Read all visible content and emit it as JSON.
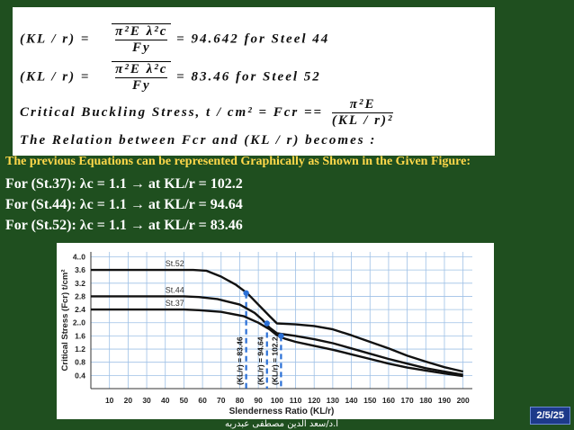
{
  "slide": {
    "intro": "The previous Equations can be represented Graphically as Shown in the Given Figure:",
    "lines": [
      "For (St.37):    λc = 1.1  → at  KL/r = 102.2",
      "For (St.44):    λc = 1.1  → at  KL/r = 94.64",
      "For (St.52):    λc = 1.1  → at  KL/r = 83.46"
    ],
    "page": "2/5/25",
    "author": "أ.د/سعد الدين مصطفى عبدربه"
  },
  "equations": {
    "eq1_lhs": "(KL / r) =",
    "eq1_num": "π²E λ²c",
    "eq1_den": "Fy",
    "eq1_rhs": "= 94.642   for   Steel   44",
    "eq2_lhs": "(KL / r) =",
    "eq2_num": "π²E λ²c",
    "eq2_den": "Fy",
    "eq2_rhs": "= 83.46   for   Steel   52",
    "eq3_lhs": "Critical   Buckling   Stress, t / cm² = Fcr ==",
    "eq3_num": "π²E",
    "eq3_den": "(KL / r)²",
    "eq4": "The   Relation   between   Fcr   and   (KL / r)   becomes :"
  },
  "chart_data": {
    "type": "line",
    "xlabel": "Slenderness Ratio  (KL/r)",
    "ylabel": "Critical Stress  (Fcr)  t/cm²",
    "x_ticks": [
      10,
      20,
      30,
      40,
      50,
      60,
      70,
      80,
      90,
      100,
      110,
      120,
      130,
      140,
      150,
      160,
      170,
      180,
      190,
      200
    ],
    "y_ticks": [
      "4..0",
      "3.6",
      "3.2",
      "2.8",
      "2.4",
      "2..0",
      "1.6",
      "1.2",
      "0.8",
      "0.4"
    ],
    "y_tick_values": [
      4.0,
      3.6,
      3.2,
      2.8,
      2.4,
      2.0,
      1.6,
      1.2,
      0.8,
      0.4
    ],
    "xlim": [
      0,
      205
    ],
    "ylim": [
      0,
      4.15
    ],
    "grid": true,
    "series": [
      {
        "name": "St.52",
        "x": [
          0,
          55,
          62,
          70,
          78,
          84,
          90,
          96,
          100,
          110,
          120,
          130,
          140,
          150,
          160,
          170,
          180,
          190,
          200
        ],
        "y": [
          3.6,
          3.6,
          3.58,
          3.4,
          3.15,
          2.9,
          2.55,
          2.2,
          1.98,
          1.95,
          1.9,
          1.8,
          1.62,
          1.42,
          1.22,
          1.0,
          0.82,
          0.65,
          0.52
        ]
      },
      {
        "name": "St.44",
        "x": [
          0,
          50,
          58,
          68,
          80,
          88,
          92,
          96,
          100,
          110,
          120,
          130,
          140,
          150,
          160,
          170,
          180,
          190,
          200
        ],
        "y": [
          2.8,
          2.8,
          2.78,
          2.72,
          2.55,
          2.3,
          2.1,
          1.85,
          1.68,
          1.6,
          1.5,
          1.38,
          1.22,
          1.06,
          0.9,
          0.76,
          0.62,
          0.52,
          0.42
        ]
      },
      {
        "name": "St.37",
        "x": [
          0,
          50,
          58,
          70,
          82,
          90,
          96,
          100,
          104,
          110,
          120,
          130,
          140,
          150,
          160,
          170,
          180,
          190,
          200
        ],
        "y": [
          2.4,
          2.4,
          2.38,
          2.33,
          2.2,
          2.0,
          1.8,
          1.62,
          1.52,
          1.42,
          1.3,
          1.18,
          1.04,
          0.9,
          0.76,
          0.64,
          0.55,
          0.46,
          0.38
        ]
      }
    ],
    "markers": [
      {
        "x": 83.46,
        "y": 2.9,
        "label": "(KL/r) = 83.46"
      },
      {
        "x": 94.64,
        "y": 1.98,
        "label": "(KL/r) = 94.64"
      },
      {
        "x": 102.2,
        "y": 1.6,
        "label": "(KL/r) = 102.2"
      }
    ],
    "marker_color": "#2a6fd6"
  }
}
